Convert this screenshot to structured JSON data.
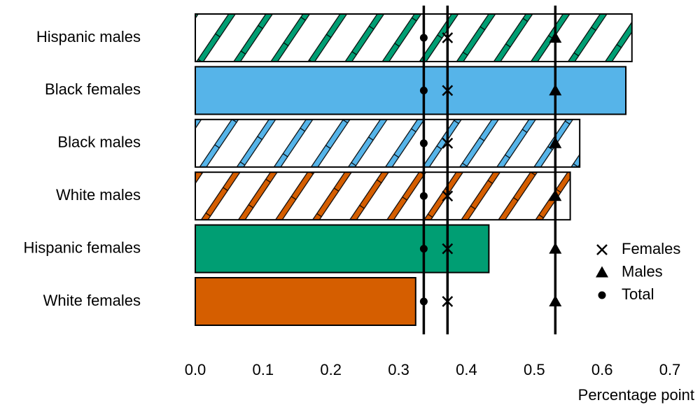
{
  "chart_data": {
    "type": "bar",
    "orientation": "horizontal",
    "x_label": "Percentage point",
    "categories": [
      "Hispanic males",
      "Black females",
      "Black males",
      "White males",
      "Hispanic females",
      "White females"
    ],
    "values": [
      0.644,
      0.635,
      0.567,
      0.553,
      0.433,
      0.325
    ],
    "colors": [
      "#009e73",
      "#56b4e9",
      "#56b4e9",
      "#d55e00",
      "#009e73",
      "#d55e00"
    ],
    "hatched": [
      true,
      false,
      true,
      true,
      false,
      false
    ],
    "reference_lines": [
      {
        "name": "Females",
        "value": 0.372,
        "marker": "x"
      },
      {
        "name": "Males",
        "value": 0.531,
        "marker": "triangle"
      },
      {
        "name": "Total",
        "value": 0.337,
        "marker": "dot"
      }
    ],
    "xlim": [
      0,
      0.7
    ],
    "xticks": [
      {
        "value": 0,
        "label": "0.0"
      },
      0.1,
      0.2,
      0.3,
      0.4,
      0.5,
      0.6,
      0.7
    ]
  }
}
